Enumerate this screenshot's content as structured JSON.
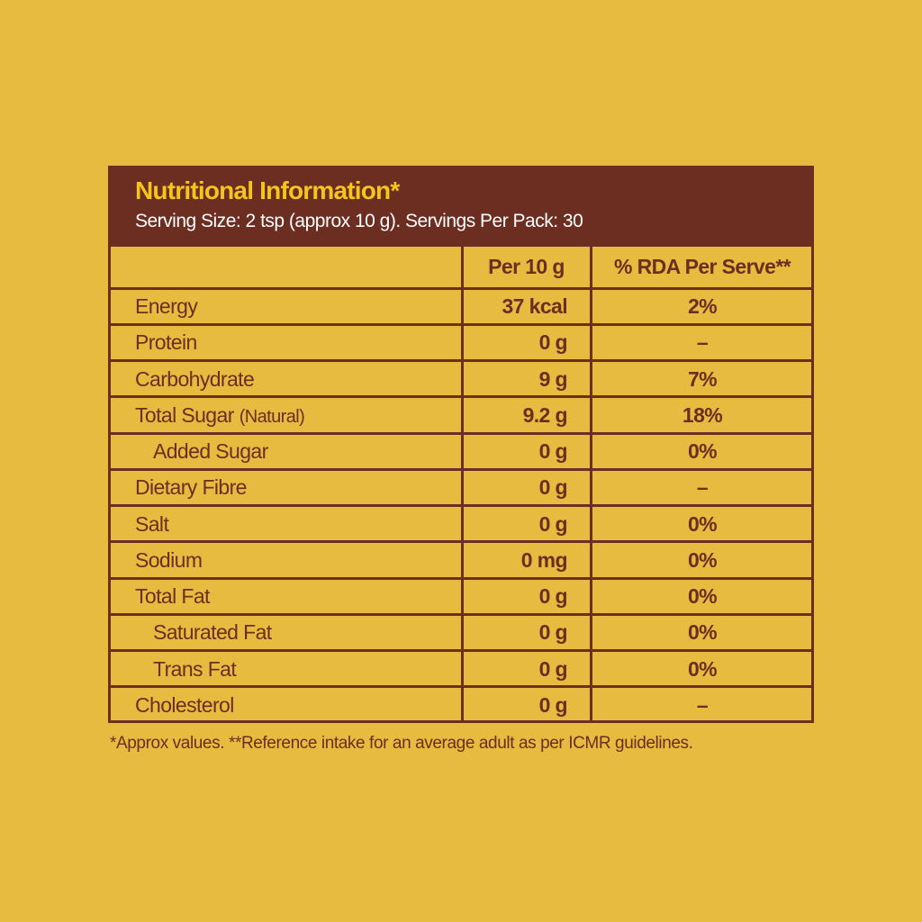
{
  "header": {
    "title": "Nutritional Information*",
    "subtitle": "Serving Size: 2 tsp (approx 10 g). Servings Per Pack: 30"
  },
  "table": {
    "columns": [
      "Per 10 g",
      "% RDA Per Serve**"
    ],
    "rows": [
      {
        "label": "Energy",
        "amount": "37 kcal",
        "rda": "2%"
      },
      {
        "label": "Protein",
        "amount": "0 g",
        "rda": "–"
      },
      {
        "label": "Carbohydrate",
        "amount": "9 g",
        "rda": "7%"
      },
      {
        "label": "Total Sugar",
        "note": "(Natural)",
        "amount": "9.2 g",
        "rda": "18%"
      },
      {
        "label": "Added Sugar",
        "indent": true,
        "amount": "0 g",
        "rda": "0%"
      },
      {
        "label": "Dietary Fibre",
        "amount": "0 g",
        "rda": "–"
      },
      {
        "label": "Salt",
        "amount": "0 g",
        "rda": "0%"
      },
      {
        "label": "Sodium",
        "amount": "0 mg",
        "rda": "0%"
      },
      {
        "label": "Total Fat",
        "amount": "0 g",
        "rda": "0%"
      },
      {
        "label": "Saturated Fat",
        "indent": true,
        "amount": "0 g",
        "rda": "0%"
      },
      {
        "label": "Trans Fat",
        "indent": true,
        "amount": "0 g",
        "rda": "0%"
      },
      {
        "label": "Cholesterol",
        "amount": "0 g",
        "rda": "–"
      }
    ]
  },
  "footnote": "*Approx values. **Reference intake for an average adult as per ICMR guidelines."
}
